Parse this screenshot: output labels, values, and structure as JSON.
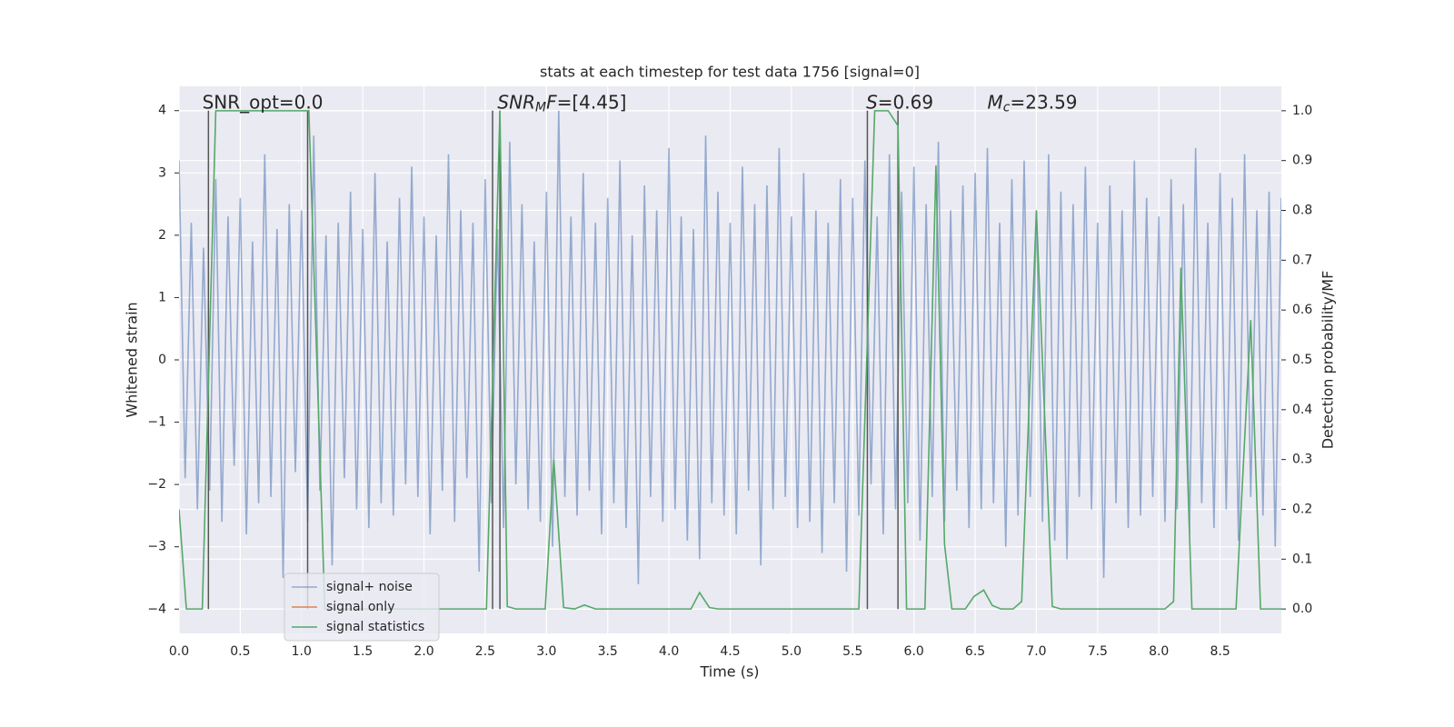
{
  "chart_data": {
    "type": "line",
    "title": "stats at each timestep for test data 1756 [signal=0]",
    "x_label": "Time (s)",
    "y_label": "Whitened strain",
    "y2_label": "Detection probability/MF",
    "xlim": [
      0,
      9.0
    ],
    "ylim": [
      -4.39,
      4.39
    ],
    "y2lim": [
      -0.049,
      1.049
    ],
    "xticks": [
      {
        "value": 0,
        "label": "0.0"
      },
      0.5,
      {
        "value": 1,
        "label": "1.0"
      },
      1.5,
      {
        "value": 2,
        "label": "2.0"
      },
      2.5,
      {
        "value": 3,
        "label": "3.0"
      },
      3.5,
      {
        "value": 4,
        "label": "4.0"
      },
      4.5,
      {
        "value": 5,
        "label": "5.0"
      },
      5.5,
      {
        "value": 6,
        "label": "6.0"
      },
      6.5,
      {
        "value": 7,
        "label": "7.0"
      },
      7.5,
      {
        "value": 8,
        "label": "8.0"
      },
      8.5
    ],
    "yticks": [
      {
        "value": -4,
        "label": "−4"
      },
      {
        "value": -3,
        "label": "−3"
      },
      {
        "value": -2,
        "label": "−2"
      },
      {
        "value": -1,
        "label": "−1"
      },
      0,
      1,
      2,
      3,
      4
    ],
    "y2ticks": [
      {
        "value": 0,
        "label": "0.0"
      },
      0.1,
      0.2,
      0.3,
      0.4,
      0.5,
      0.6,
      0.7,
      0.8,
      0.9,
      {
        "value": 1,
        "label": "1.0"
      }
    ],
    "grid": true,
    "legend": "lower left",
    "series": [
      {
        "name": "signal+ noise",
        "color": "#4c72b0",
        "opacity": 0.55,
        "x": [
          0,
          0.05,
          0.1,
          0.15,
          0.2,
          0.25,
          0.3,
          0.35,
          0.4,
          0.45,
          0.5,
          0.55,
          0.6,
          0.65,
          0.7,
          0.75,
          0.8,
          0.85,
          0.9,
          0.95,
          1,
          1.05,
          1.1,
          1.15,
          1.2,
          1.25,
          1.3,
          1.35,
          1.4,
          1.45,
          1.5,
          1.55,
          1.6,
          1.65,
          1.7,
          1.75,
          1.8,
          1.85,
          1.9,
          1.95,
          2,
          2.05,
          2.1,
          2.15,
          2.2,
          2.25,
          2.3,
          2.35,
          2.4,
          2.45,
          2.5,
          2.55,
          2.6,
          2.65,
          2.7,
          2.75,
          2.8,
          2.85,
          2.9,
          2.95,
          3,
          3.05,
          3.1,
          3.15,
          3.2,
          3.25,
          3.3,
          3.35,
          3.4,
          3.45,
          3.5,
          3.55,
          3.6,
          3.65,
          3.7,
          3.75,
          3.8,
          3.85,
          3.9,
          3.95,
          4,
          4.05,
          4.1,
          4.15,
          4.2,
          4.25,
          4.3,
          4.35,
          4.4,
          4.45,
          4.5,
          4.55,
          4.6,
          4.65,
          4.7,
          4.75,
          4.8,
          4.85,
          4.9,
          4.95,
          5,
          5.05,
          5.1,
          5.15,
          5.2,
          5.25,
          5.3,
          5.35,
          5.4,
          5.45,
          5.5,
          5.55,
          5.6,
          5.65,
          5.7,
          5.75,
          5.8,
          5.85,
          5.9,
          5.95,
          6,
          6.05,
          6.1,
          6.15,
          6.2,
          6.25,
          6.3,
          6.35,
          6.4,
          6.45,
          6.5,
          6.55,
          6.6,
          6.65,
          6.7,
          6.75,
          6.8,
          6.85,
          6.9,
          6.95,
          7,
          7.05,
          7.1,
          7.15,
          7.2,
          7.25,
          7.3,
          7.35,
          7.4,
          7.45,
          7.5,
          7.55,
          7.6,
          7.65,
          7.7,
          7.75,
          7.8,
          7.85,
          7.9,
          7.95,
          8,
          8.05,
          8.1,
          8.15,
          8.2,
          8.25,
          8.3,
          8.35,
          8.4,
          8.45,
          8.5,
          8.55,
          8.6,
          8.65,
          8.7,
          8.75,
          8.8,
          8.85,
          8.9,
          8.95,
          9
        ],
        "values": [
          3.2,
          -1.9,
          2.2,
          -2.4,
          1.8,
          -2.1,
          2.9,
          -2.6,
          2.3,
          -1.7,
          2.6,
          -2.8,
          1.9,
          -2.3,
          3.3,
          -2.2,
          2.1,
          -3.5,
          2.5,
          -1.8,
          2.4,
          -2.6,
          3.6,
          -2.1,
          2.0,
          -3.3,
          2.2,
          -1.9,
          2.7,
          -2.4,
          2.1,
          -2.7,
          3.0,
          -2.3,
          1.9,
          -2.5,
          2.6,
          -2.0,
          3.1,
          -2.2,
          2.3,
          -2.8,
          2.0,
          -2.1,
          3.3,
          -2.6,
          2.4,
          -1.9,
          2.2,
          -3.4,
          2.9,
          -2.3,
          2.1,
          -2.7,
          3.5,
          -2.0,
          2.5,
          -2.4,
          1.9,
          -2.6,
          2.7,
          -3.0,
          4.0,
          -2.2,
          2.3,
          -2.5,
          3.0,
          -2.1,
          2.2,
          -2.8,
          2.6,
          -2.3,
          3.2,
          -2.7,
          2.0,
          -3.6,
          2.8,
          -2.2,
          2.4,
          -2.6,
          3.4,
          -2.4,
          2.3,
          -2.9,
          2.1,
          -3.2,
          3.6,
          -2.3,
          2.7,
          -2.5,
          2.2,
          -2.8,
          3.1,
          -2.1,
          2.5,
          -3.3,
          2.8,
          -2.4,
          3.4,
          -2.2,
          2.3,
          -2.7,
          3.0,
          -2.6,
          2.4,
          -3.1,
          2.2,
          -2.3,
          2.9,
          -3.4,
          2.6,
          -2.5,
          3.2,
          -2.0,
          2.3,
          -2.8,
          3.3,
          -2.4,
          2.7,
          -2.3,
          3.1,
          -2.9,
          2.5,
          -2.2,
          3.5,
          -2.6,
          2.4,
          -2.1,
          2.8,
          -2.7,
          3.0,
          -2.4,
          3.4,
          -2.3,
          2.2,
          -3.0,
          2.9,
          -2.5,
          3.2,
          -2.2,
          2.4,
          -2.6,
          3.3,
          -2.9,
          2.7,
          -3.2,
          2.5,
          -2.2,
          3.1,
          -2.4,
          2.2,
          -3.5,
          2.8,
          -2.3,
          2.4,
          -2.7,
          3.2,
          -2.5,
          2.6,
          -2.2,
          2.3,
          -2.6,
          2.9,
          -2.4,
          2.5,
          -2.8,
          3.4,
          -2.3,
          2.2,
          -2.7,
          3.0,
          -2.4,
          2.6,
          -2.9,
          3.3,
          -2.2,
          2.4,
          -2.5,
          2.7,
          -3.0,
          2.6
        ]
      },
      {
        "name": "signal only",
        "color": "#dd8452",
        "x": [],
        "values": []
      },
      {
        "name": "signal statistics",
        "color": "#55a868",
        "axis": "y2",
        "x": [
          0,
          0.06,
          0.19,
          0.3,
          1.06,
          1.19,
          2.51,
          2.62,
          2.68,
          2.75,
          2.99,
          3.06,
          3.14,
          3.23,
          3.31,
          3.4,
          4.18,
          4.25,
          4.33,
          4.4,
          5.55,
          5.68,
          5.79,
          5.87,
          5.94,
          6.09,
          6.18,
          6.25,
          6.31,
          6.42,
          6.49,
          6.57,
          6.64,
          6.71,
          6.81,
          6.88,
          7.0,
          7.13,
          7.2,
          8.05,
          8.12,
          8.18,
          8.27,
          8.63,
          8.75,
          8.83,
          9.0
        ],
        "values": [
          0.2,
          0,
          0,
          1,
          1,
          0,
          0,
          1,
          0.005,
          0,
          0,
          0.3,
          0.003,
          0,
          0.008,
          0,
          0,
          0.033,
          0.003,
          0,
          0,
          1,
          1,
          0.97,
          0,
          0,
          0.89,
          0.13,
          0,
          0,
          0.025,
          0.038,
          0.007,
          0,
          0,
          0.015,
          0.8,
          0.005,
          0,
          0,
          0.015,
          0.685,
          0,
          0,
          0.58,
          0,
          0
        ]
      }
    ],
    "vlines": {
      "x": [
        0.24,
        1.05,
        2.56,
        2.62,
        5.62,
        5.87
      ],
      "ymin": -4,
      "ymax": 4,
      "color": "#555555"
    },
    "annotations": [
      {
        "x": 0.19,
        "y": 4.12,
        "parts": [
          {
            "text": "SNR_opt=0.0"
          }
        ]
      },
      {
        "x": 2.6,
        "y": 4.12,
        "parts": [
          {
            "text": "SNR",
            "style": "italic"
          },
          {
            "text": "M",
            "style": "sub"
          },
          {
            "text": "F",
            "style": "italic"
          },
          {
            "text": "=[4.45]"
          }
        ]
      },
      {
        "x": 5.61,
        "y": 4.12,
        "parts": [
          {
            "text": "S",
            "style": "italic"
          },
          {
            "text": "=0.69"
          }
        ]
      },
      {
        "x": 6.6,
        "y": 4.12,
        "parts": [
          {
            "text": "M",
            "style": "italic"
          },
          {
            "text": "c",
            "style": "sub"
          },
          {
            "text": "=23.59"
          }
        ]
      }
    ]
  }
}
